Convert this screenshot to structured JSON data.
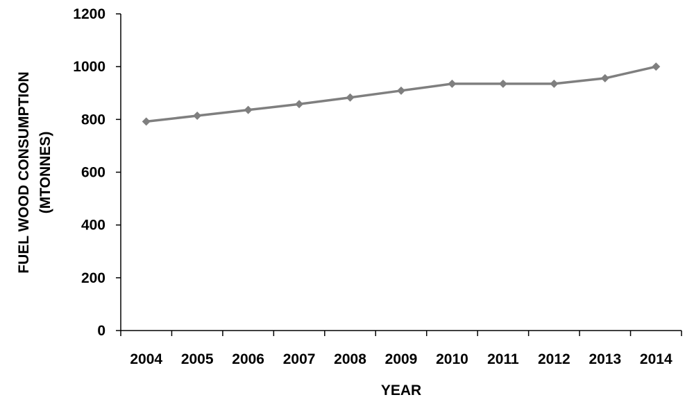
{
  "chart_data": {
    "type": "line",
    "title": "",
    "xlabel": "YEAR",
    "ylabel": [
      "FUEL WOOD CONSUMPTION",
      "(MTONNES)"
    ],
    "categories": [
      "2004",
      "2005",
      "2006",
      "2007",
      "2008",
      "2009",
      "2010",
      "2011",
      "2012",
      "2013",
      "2014"
    ],
    "series": [
      {
        "values": [
          792,
          814,
          836,
          858,
          883,
          909,
          935,
          935,
          935,
          956,
          1000
        ]
      }
    ],
    "ylim": [
      0,
      1200
    ],
    "yticks": [
      "0",
      "200",
      "400",
      "600",
      "800",
      "1000",
      "1200"
    ],
    "grid": false,
    "legend": "none",
    "colors": {
      "line": "#7f7f7f",
      "marker": "#7f7f7f",
      "axis": "#000000"
    }
  }
}
